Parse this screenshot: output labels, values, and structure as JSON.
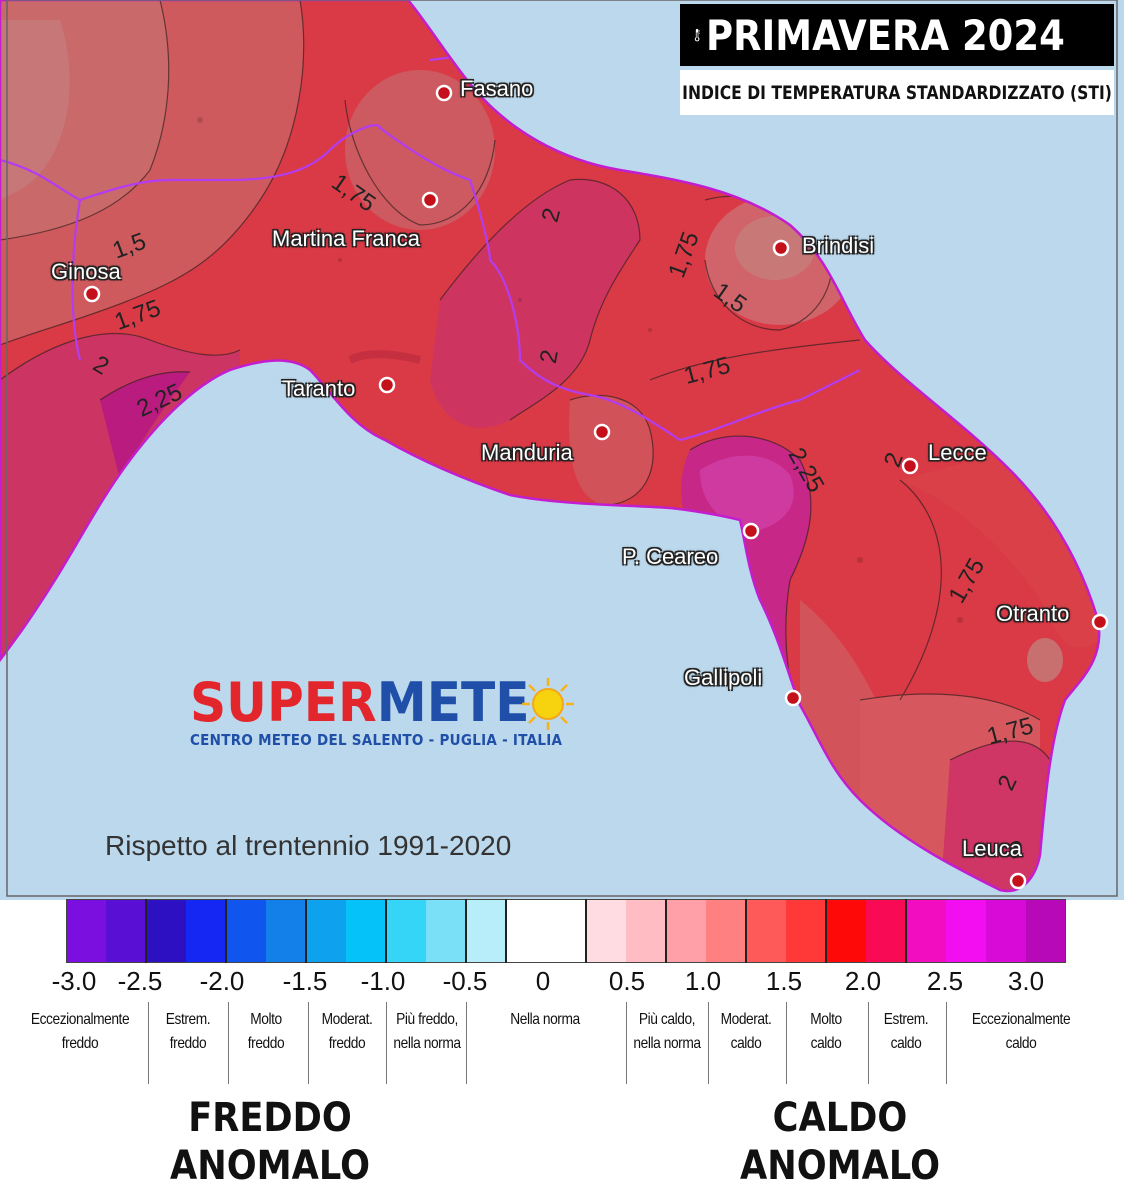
{
  "header": {
    "title": "PRIMAVERA 2024",
    "subtitle": "INDICE DI TEMPERATURA STANDARDIZZATO (STI)",
    "icon": "thermometer-icon"
  },
  "cities": [
    {
      "id": "fasano",
      "name": "Fasano"
    },
    {
      "id": "martina-franca",
      "name": "Martina  Franca"
    },
    {
      "id": "brindisi",
      "name": "Brindisi"
    },
    {
      "id": "ginosa",
      "name": "Ginosa"
    },
    {
      "id": "taranto",
      "name": "Taranto"
    },
    {
      "id": "manduria",
      "name": "Manduria"
    },
    {
      "id": "lecce",
      "name": "Lecce"
    },
    {
      "id": "p-ceareo",
      "name": "P. Ceareo"
    },
    {
      "id": "otranto",
      "name": "Otranto"
    },
    {
      "id": "gallipoli",
      "name": "Gallipoli"
    },
    {
      "id": "leuca",
      "name": "Leuca"
    }
  ],
  "contour_labels": [
    "1,75",
    "2",
    "1,75",
    "1,5",
    "1,75",
    "2",
    "1,5",
    "2,25",
    "2",
    "1,75",
    "2",
    "2,25",
    "1,75",
    "1,75",
    "2",
    "2"
  ],
  "logo": {
    "brand_red": "SUPER",
    "brand_blue": "METE",
    "tagline": "CENTRO METEO DEL SALENTO - PUGLIA - ITALIA"
  },
  "reference": "Rispetto al trentennio 1991-2020",
  "legend": {
    "colors": [
      "#7a0fe0",
      "#5a10d4",
      "#2c10c2",
      "#1527f2",
      "#0f55ee",
      "#1280e8",
      "#0ea2ee",
      "#05c3f8",
      "#35d5f8",
      "#7ae0f8",
      "#b8eefa",
      "#ffffff",
      "#ffffff",
      "#ffdce2",
      "#ffbcc2",
      "#ffa0a8",
      "#ff8080",
      "#ff5a5a",
      "#ff3838",
      "#ff0808",
      "#f80a54",
      "#f20ec0",
      "#f20ef0",
      "#d80ad8",
      "#b809b8"
    ],
    "ticks": [
      "-3.0",
      "-2.5",
      "-2.0",
      "-1.5",
      "-1.0",
      "-0.5",
      "0",
      "0.5",
      "1.0",
      "1.5",
      "2.0",
      "2.5",
      "3.0"
    ],
    "categories": [
      [
        "Eccezionalmente",
        "freddo"
      ],
      [
        "Estrem.",
        "freddo"
      ],
      [
        "Molto",
        "freddo"
      ],
      [
        "Moderat.",
        "freddo"
      ],
      [
        "Più freddo,",
        "nella norma"
      ],
      [
        "Nella norma"
      ],
      [
        "Più caldo,",
        "nella norma"
      ],
      [
        "Moderat.",
        "caldo"
      ],
      [
        "Molto",
        "caldo"
      ],
      [
        "Estrem.",
        "caldo"
      ],
      [
        "Eccezionalmente",
        "caldo"
      ]
    ],
    "cold_line1": "FREDDO",
    "cold_line2": "ANOMALO",
    "warm_line1": "CALDO",
    "warm_line2": "ANOMALO"
  }
}
